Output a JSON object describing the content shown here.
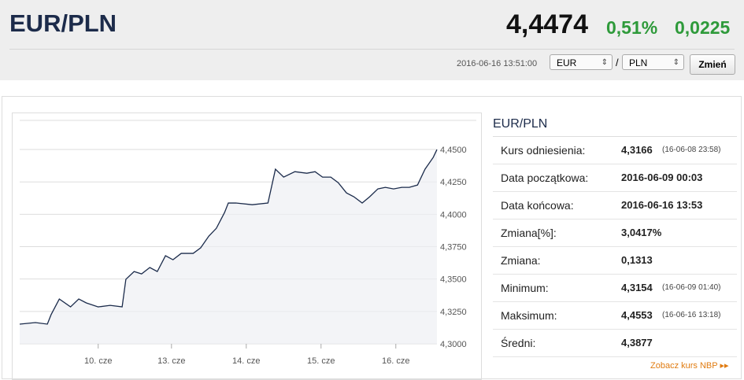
{
  "header": {
    "pair": "EUR/PLN",
    "rate": "4,4474",
    "change_pct": "0,51%",
    "change": "0,0225",
    "timestamp": "2016-06-16 13:51:00",
    "from": "EUR",
    "separator": "/",
    "to": "PLN",
    "button": "Zmień"
  },
  "chart_data": {
    "type": "line",
    "x": [
      0,
      0.21,
      0.37,
      0.42,
      0.53,
      0.68,
      0.79,
      0.89,
      1.05,
      1.21,
      1.37,
      1.42,
      1.53,
      1.63,
      1.74,
      1.84,
      1.95,
      2.05,
      2.16,
      2.32,
      2.42,
      2.53,
      2.63,
      2.74,
      2.79,
      2.89,
      3.11,
      3.32,
      3.42,
      3.53,
      3.68,
      3.84,
      3.95,
      4.05,
      4.16,
      4.26,
      4.37,
      4.47,
      4.58,
      4.68,
      4.79,
      4.89,
      5,
      5.11,
      5.21,
      5.32,
      5.42,
      5.53,
      5.58
    ],
    "series": [
      {
        "name": "EUR/PLN",
        "color": "#1b2b4b",
        "values": [
          4.3152,
          4.3164,
          4.3152,
          4.3225,
          4.3346,
          4.3285,
          4.3346,
          4.3316,
          4.3285,
          4.3297,
          4.3285,
          4.3498,
          4.3558,
          4.354,
          4.3589,
          4.3558,
          4.368,
          4.3649,
          4.3698,
          4.3698,
          4.3741,
          4.3832,
          4.3892,
          4.4014,
          4.4087,
          4.4087,
          4.4074,
          4.4087,
          4.4348,
          4.4287,
          4.4329,
          4.4317,
          4.4329,
          4.4287,
          4.4287,
          4.4244,
          4.4165,
          4.4135,
          4.4087,
          4.4135,
          4.4196,
          4.4208,
          4.4196,
          4.4208,
          4.4208,
          4.4226,
          4.4348,
          4.4439,
          4.45
        ]
      }
    ],
    "xlim": [
      0,
      5.58
    ],
    "xticks": [
      {
        "value": 1.05,
        "label": "10. cze"
      },
      {
        "value": 2.03,
        "label": "13. cze"
      },
      {
        "value": 3.03,
        "label": "14. cze"
      },
      {
        "value": 4.03,
        "label": "15. cze"
      },
      {
        "value": 5.03,
        "label": "16. cze"
      }
    ],
    "ylim": [
      4.3,
      4.4725
    ],
    "yticks": [
      {
        "value": 4.3,
        "label": "4,3000"
      },
      {
        "value": 4.325,
        "label": "4,3250"
      },
      {
        "value": 4.35,
        "label": "4,3500"
      },
      {
        "value": 4.375,
        "label": "4,3750"
      },
      {
        "value": 4.4,
        "label": "4,4000"
      },
      {
        "value": 4.425,
        "label": "4,4250"
      },
      {
        "value": 4.45,
        "label": "4,4500"
      }
    ],
    "grid": true
  },
  "stats": {
    "title": "EUR/PLN",
    "rows": [
      [
        "Kurs odniesienia:",
        "4,3166",
        "(16-06-08 23:58)"
      ],
      [
        "Data początkowa:",
        "2016-06-09 00:03"
      ],
      [
        "Data końcowa:",
        "2016-06-16 13:53"
      ],
      [
        "Zmiana[%]:",
        "3,0417%"
      ],
      [
        "Zmiana:",
        "0,1313"
      ],
      [
        "Minimum:",
        "4,3154",
        "(16-06-09 01:40)"
      ],
      [
        "Maksimum:",
        "4,4553",
        "(16-06-16 13:18)"
      ],
      [
        "Średni:",
        "4,3877"
      ]
    ],
    "link": "Zobacz kurs NBP ▸▸"
  }
}
